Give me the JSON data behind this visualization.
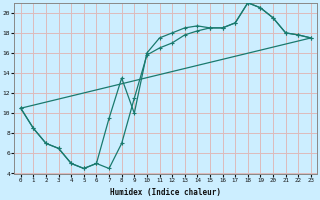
{
  "xlabel": "Humidex (Indice chaleur)",
  "bg_color": "#cceeff",
  "grid_color": "#ddbbbb",
  "line_color": "#1a7a6e",
  "xlim": [
    -0.5,
    23.5
  ],
  "ylim": [
    4,
    21
  ],
  "xticks": [
    0,
    1,
    2,
    3,
    4,
    5,
    6,
    7,
    8,
    9,
    10,
    11,
    12,
    13,
    14,
    15,
    16,
    17,
    18,
    19,
    20,
    21,
    22,
    23
  ],
  "yticks": [
    4,
    6,
    8,
    10,
    12,
    14,
    16,
    18,
    20
  ],
  "line1_x": [
    0,
    1,
    2,
    3,
    4,
    5,
    6,
    7,
    8,
    9,
    10,
    11,
    12,
    13,
    14,
    15,
    16,
    17,
    18,
    19,
    20,
    21,
    22,
    23
  ],
  "line1_y": [
    10.5,
    8.5,
    7.0,
    6.5,
    5.0,
    4.5,
    5.0,
    9.5,
    13.5,
    10.0,
    16.0,
    17.5,
    18.0,
    18.5,
    18.7,
    18.5,
    18.5,
    19.0,
    21.0,
    20.5,
    19.5,
    18.0,
    17.8,
    17.5
  ],
  "line2_x": [
    0,
    1,
    2,
    3,
    4,
    5,
    6,
    7,
    8,
    9,
    10,
    11,
    12,
    13,
    14,
    15,
    16,
    17,
    18,
    19,
    20,
    21,
    22,
    23
  ],
  "line2_y": [
    10.5,
    8.5,
    7.0,
    6.5,
    5.0,
    4.5,
    5.0,
    4.5,
    7.0,
    11.5,
    15.8,
    16.5,
    17.0,
    17.8,
    18.2,
    18.5,
    18.5,
    19.0,
    21.0,
    20.5,
    19.5,
    18.0,
    17.8,
    17.5
  ],
  "line3_x": [
    0,
    23
  ],
  "line3_y": [
    10.5,
    17.5
  ]
}
